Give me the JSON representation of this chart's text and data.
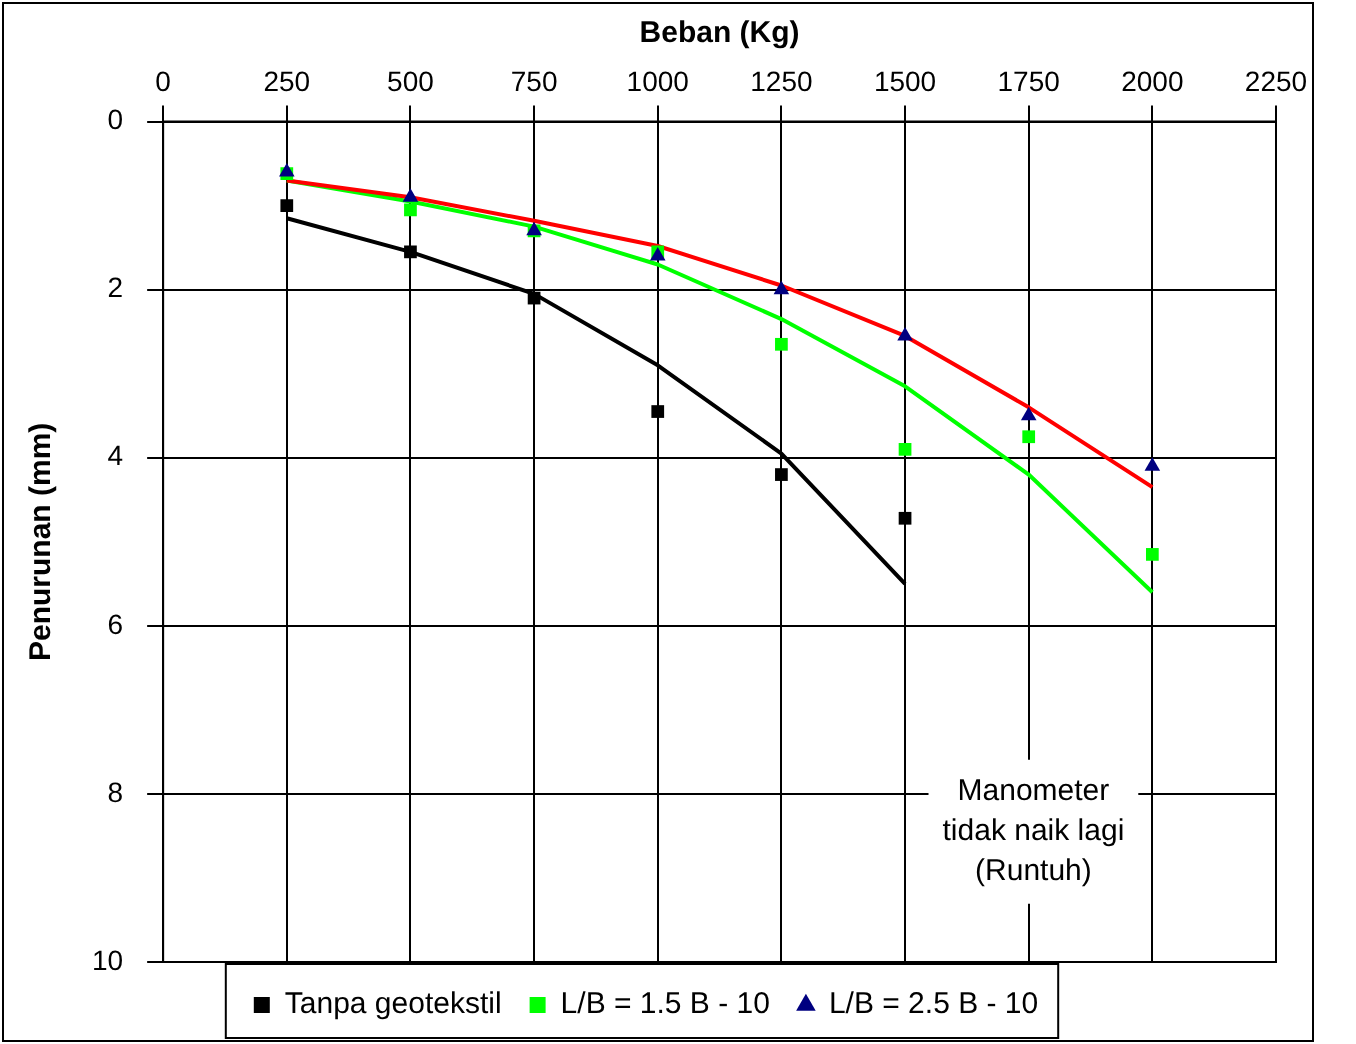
{
  "chart_data": {
    "type": "scatter",
    "xlabel": "Beban (Kg)",
    "ylabel": "Penurunan (mm)",
    "xlim": [
      0,
      2250
    ],
    "xticks": [
      0,
      250,
      500,
      750,
      1000,
      1250,
      1500,
      1750,
      2000,
      2250
    ],
    "ylim": [
      10,
      0
    ],
    "yticks": [
      0,
      2,
      4,
      6,
      8,
      10
    ],
    "grid": true,
    "legend": "bottom",
    "annotations": [
      "Manometer\ntidak naik lagi\n(Runtuh)"
    ],
    "series": [
      {
        "name": "Tanpa geotekstil",
        "color": "#000000",
        "marker": "square",
        "x": [
          250,
          500,
          750,
          1000,
          1250,
          1500
        ],
        "values": [
          1.0,
          1.55,
          2.1,
          3.45,
          4.2,
          4.72
        ]
      },
      {
        "name": "L/B = 1.5 B - 10",
        "color": "#00ff00",
        "marker": "square",
        "x": [
          250,
          500,
          750,
          1000,
          1250,
          1500,
          1750,
          2000
        ],
        "values": [
          0.62,
          1.05,
          1.3,
          1.55,
          2.65,
          3.9,
          3.75,
          5.15
        ]
      },
      {
        "name": "L/B = 2.5 B - 10",
        "color": "#000080",
        "marker": "triangle",
        "x": [
          250,
          500,
          750,
          1000,
          1250,
          1500,
          1750,
          2000
        ],
        "values": [
          0.6,
          0.9,
          1.3,
          1.6,
          2.0,
          2.55,
          3.5,
          4.1
        ]
      },
      {
        "type": "line",
        "color": "#000000",
        "marker": "none",
        "x": [
          250,
          500,
          750,
          1000,
          1250,
          1500
        ],
        "values": [
          1.15,
          1.55,
          2.05,
          2.9,
          3.95,
          5.5
        ]
      },
      {
        "type": "line",
        "color": "#00ff00",
        "marker": "none",
        "x": [
          250,
          500,
          750,
          1000,
          1250,
          1500,
          1750,
          2000
        ],
        "values": [
          0.7,
          0.95,
          1.25,
          1.7,
          2.35,
          3.15,
          4.2,
          5.6
        ]
      },
      {
        "type": "line",
        "color": "#ff0000",
        "marker": "none",
        "x": [
          250,
          500,
          750,
          1000,
          1250,
          1500,
          1750,
          2000
        ],
        "values": [
          0.7,
          0.9,
          1.18,
          1.48,
          1.95,
          2.55,
          3.4,
          4.35
        ]
      }
    ]
  }
}
